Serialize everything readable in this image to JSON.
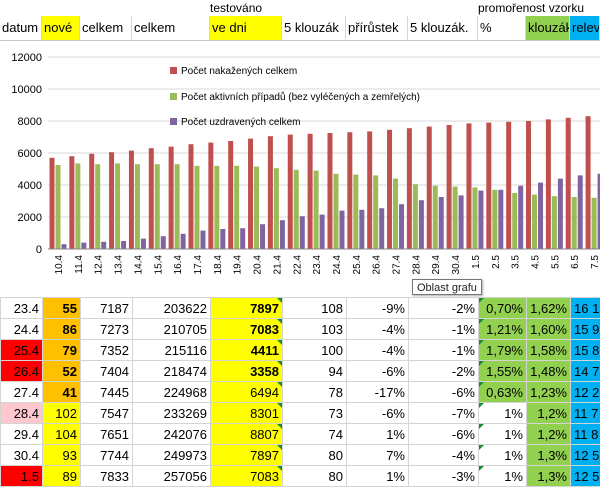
{
  "header_top": {
    "testovano": "testováno",
    "promorenost": "promořenost vzorku"
  },
  "columns": [
    "datum",
    "nové",
    "celkem",
    "celkem",
    "ve dni",
    "5 klouzák",
    "přírůstek",
    "5 klouzák.",
    "%",
    "klouzák",
    "relev"
  ],
  "tooltip": "Oblast grafu",
  "colors": {
    "infected": "#c0504d",
    "active": "#9bbb59",
    "recovered": "#8064a2",
    "yellow": "#ffff00",
    "orange": "#ffc000",
    "green": "#92d050",
    "blue": "#00b0f0",
    "red": "#ff0000",
    "pink": "#ffc7ce"
  },
  "chart_data": {
    "type": "bar",
    "ylim": [
      0,
      12000
    ],
    "yticks": [
      "0",
      "2000",
      "4000",
      "6000",
      "8000",
      "10000",
      "12000"
    ],
    "categories": [
      "10.4",
      "11.4",
      "12.4",
      "13.4",
      "14.4",
      "15.4",
      "16.4",
      "17.4",
      "18.4",
      "19.4",
      "20.4",
      "21.4",
      "22.4",
      "23.4",
      "24.4",
      "25.4",
      "26.4",
      "27.4",
      "28.4",
      "29.4",
      "30.4",
      "1.5",
      "2.5",
      "3.5",
      "4.5",
      "5.5",
      "6.5",
      "7.5"
    ],
    "series": [
      {
        "name": "Počet nakažených celkem",
        "values": [
          5700,
          5800,
          5950,
          6050,
          6150,
          6300,
          6400,
          6550,
          6650,
          6750,
          6900,
          7050,
          7150,
          7200,
          7250,
          7300,
          7350,
          7450,
          7550,
          7650,
          7750,
          7850,
          7900,
          7950,
          8000,
          8100,
          8200,
          8300
        ]
      },
      {
        "name": "Počet aktivních případů (bez vyléčených a zemřelých)",
        "values": [
          5250,
          5350,
          5300,
          5350,
          5300,
          5300,
          5300,
          5200,
          5200,
          5200,
          5150,
          5050,
          4950,
          4900,
          4700,
          4650,
          4600,
          4400,
          4050,
          3950,
          3900,
          3850,
          3700,
          3500,
          3400,
          3300,
          3250,
          3200
        ]
      },
      {
        "name": "Počet uzdravených celkem",
        "values": [
          300,
          400,
          450,
          500,
          650,
          800,
          950,
          1150,
          1250,
          1300,
          1550,
          1800,
          2050,
          2150,
          2400,
          2450,
          2550,
          2800,
          3050,
          3250,
          3350,
          3650,
          3700,
          3950,
          4150,
          4400,
          4600,
          4700
        ]
      }
    ]
  },
  "rows": [
    {
      "datum": "23.4",
      "nove": "55",
      "celkem": "7187",
      "celkem2": "203622",
      "ve_dni": "7897",
      "klouzak": "108",
      "prirustek": "-9%",
      "klouzak2": "-2%",
      "pct": "0,70%",
      "kl": "1,62%",
      "rel": "16 1"
    },
    {
      "datum": "24.4",
      "nove": "86",
      "celkem": "7273",
      "celkem2": "210705",
      "ve_dni": "7083",
      "klouzak": "103",
      "prirustek": "-4%",
      "klouzak2": "-1%",
      "pct": "1,21%",
      "kl": "1,60%",
      "rel": "15 9"
    },
    {
      "datum": "25.4",
      "nove": "79",
      "celkem": "7352",
      "celkem2": "215116",
      "ve_dni": "4411",
      "klouzak": "100",
      "prirustek": "-4%",
      "klouzak2": "-1%",
      "pct": "1,79%",
      "kl": "1,58%",
      "rel": "15 8"
    },
    {
      "datum": "26.4",
      "nove": "52",
      "celkem": "7404",
      "celkem2": "218474",
      "ve_dni": "3358",
      "klouzak": "94",
      "prirustek": "-6%",
      "klouzak2": "-2%",
      "pct": "1,55%",
      "kl": "1,48%",
      "rel": "14 7"
    },
    {
      "datum": "27.4",
      "nove": "41",
      "celkem": "7445",
      "celkem2": "224968",
      "ve_dni": "6494",
      "klouzak": "78",
      "prirustek": "-17%",
      "klouzak2": "-6%",
      "pct": "0,63%",
      "kl": "1,23%",
      "rel": "12 2"
    },
    {
      "datum": "28.4",
      "nove": "102",
      "celkem": "7547",
      "celkem2": "233269",
      "ve_dni": "8301",
      "klouzak": "73",
      "prirustek": "-6%",
      "klouzak2": "-7%",
      "pct": "1%",
      "kl": "1,2%",
      "rel": "11 7"
    },
    {
      "datum": "29.4",
      "nove": "104",
      "celkem": "7651",
      "celkem2": "242076",
      "ve_dni": "8807",
      "klouzak": "74",
      "prirustek": "1%",
      "klouzak2": "-6%",
      "pct": "1%",
      "kl": "1,2%",
      "rel": "11 8"
    },
    {
      "datum": "30.4",
      "nove": "93",
      "celkem": "7744",
      "celkem2": "249973",
      "ve_dni": "7897",
      "klouzak": "80",
      "prirustek": "7%",
      "klouzak2": "-4%",
      "pct": "1%",
      "kl": "1,3%",
      "rel": "12 5"
    },
    {
      "datum": "1.5",
      "nove": "89",
      "celkem": "7833",
      "celkem2": "257056",
      "ve_dni": "7083",
      "klouzak": "80",
      "prirustek": "1%",
      "klouzak2": "-3%",
      "pct": "1%",
      "kl": "1,3%",
      "rel": "12 5"
    }
  ]
}
